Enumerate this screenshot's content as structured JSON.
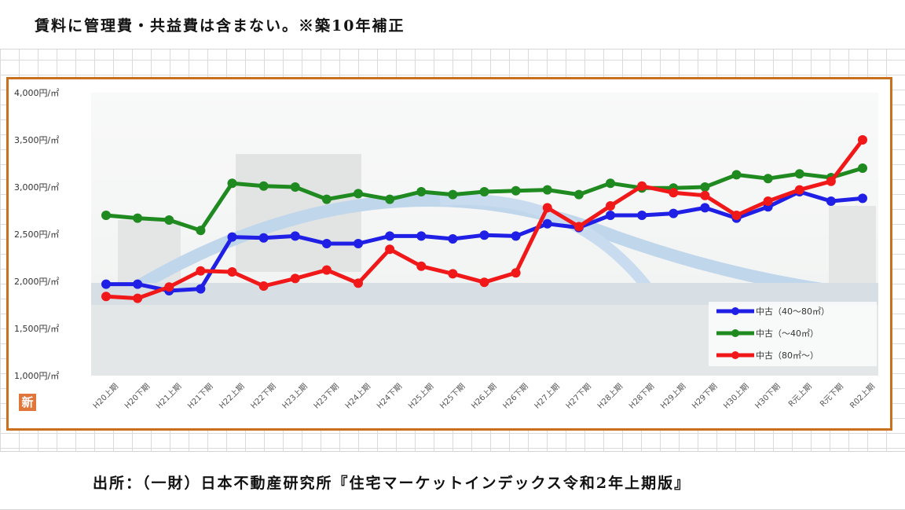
{
  "header": {
    "note": "賃料に管理費・共益費は含まない。※築10年補正"
  },
  "footer": {
    "source": "出所：（一財）日本不動産研究所『住宅マーケットインデックス令和2年上期版』"
  },
  "badge": {
    "label": "新"
  },
  "colors": {
    "frame": "#c8701e",
    "blue": "#1f1fe6",
    "green": "#1f8a1f",
    "red": "#f01818"
  },
  "chart_data": {
    "type": "line",
    "title": "",
    "xlabel": "",
    "ylabel": "",
    "ylim": [
      1000,
      4000
    ],
    "yticks": [
      4000,
      3500,
      3000,
      2500,
      2000,
      1500,
      1000
    ],
    "ytick_labels": [
      "4,000円/㎡",
      "3,500円/㎡",
      "3,000円/㎡",
      "2,500円/㎡",
      "2,000円/㎡",
      "1,500円/㎡",
      "1,000円/㎡"
    ],
    "categories": [
      "H20上期",
      "H20下期",
      "H21上期",
      "H21下期",
      "H22上期",
      "H22下期",
      "H23上期",
      "H23下期",
      "H24上期",
      "H24下期",
      "H25上期",
      "H25下期",
      "H26上期",
      "H26下期",
      "H27上期",
      "H27下期",
      "H28上期",
      "H28下期",
      "H29上期",
      "H29下期",
      "H30上期",
      "H30下期",
      "R元上期",
      "R元下期",
      "R02上期"
    ],
    "legend_position": "bottom-right",
    "grid": false,
    "series": [
      {
        "name": "中古（40～80㎡）",
        "color": "#1f1fe6",
        "values": [
          1970,
          1970,
          1900,
          1920,
          2470,
          2460,
          2480,
          2400,
          2400,
          2480,
          2480,
          2450,
          2490,
          2480,
          2610,
          2570,
          2700,
          2700,
          2720,
          2780,
          2670,
          2790,
          2950,
          2850,
          2880
        ]
      },
      {
        "name": "中古（～40㎡）",
        "color": "#1f8a1f",
        "values": [
          2700,
          2670,
          2650,
          2540,
          3040,
          3010,
          3000,
          2870,
          2930,
          2870,
          2950,
          2920,
          2950,
          2960,
          2970,
          2920,
          3040,
          2990,
          2990,
          3000,
          3130,
          3090,
          3140,
          3100,
          3200
        ]
      },
      {
        "name": "中古（80㎡～）",
        "color": "#f01818",
        "values": [
          1840,
          1820,
          1940,
          2110,
          2100,
          1950,
          2030,
          2120,
          1980,
          2340,
          2160,
          2080,
          1990,
          2090,
          2780,
          2580,
          2800,
          3010,
          2940,
          2910,
          2700,
          2850,
          2970,
          3060,
          3500
        ]
      }
    ]
  }
}
